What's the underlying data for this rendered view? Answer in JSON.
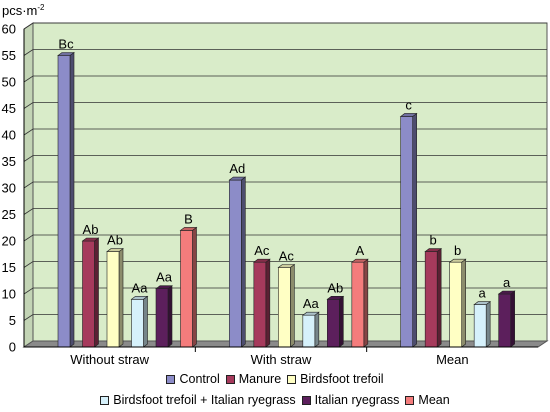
{
  "chart_data": {
    "type": "bar",
    "unit_label": "pcs·m",
    "unit_exponent": "-2",
    "ylim": [
      0,
      60
    ],
    "yticks": [
      0,
      5,
      10,
      15,
      20,
      25,
      30,
      35,
      40,
      45,
      50,
      55,
      60
    ],
    "grid": true,
    "plot_background": "#d9ecc9",
    "floor_color": "#8a8a8a",
    "categories": [
      "Without straw",
      "With straw",
      "Mean"
    ],
    "series": [
      {
        "name": "Control",
        "color": "#8c8cc8",
        "values": [
          55,
          31.5,
          43.5
        ],
        "labels": [
          "Bc",
          "Ad",
          "c"
        ]
      },
      {
        "name": "Manure",
        "color": "#a63a5c",
        "values": [
          20,
          16,
          18
        ],
        "labels": [
          "Ab",
          "Ac",
          "b"
        ]
      },
      {
        "name": "Birdsfoot trefoil",
        "color": "#ffffc4",
        "values": [
          18,
          15,
          16
        ],
        "labels": [
          "Ab",
          "Ac",
          "b"
        ]
      },
      {
        "name": "Birdsfoot trefoil + Italian ryegrass",
        "color": "#d6f1fb",
        "values": [
          9,
          6,
          8
        ],
        "labels": [
          "Aa",
          "Aa",
          "a"
        ]
      },
      {
        "name": "Italian ryegrass",
        "color": "#5c1f5c",
        "values": [
          11,
          9,
          10
        ],
        "labels": [
          "Aa",
          "Ab",
          "a"
        ]
      },
      {
        "name": "Mean",
        "color": "#f47c7c",
        "values": [
          22,
          16,
          null
        ],
        "labels": [
          "B",
          "A",
          ""
        ]
      }
    ],
    "legend_rows": [
      [
        0,
        1,
        2
      ],
      [
        3,
        4,
        5
      ]
    ]
  }
}
